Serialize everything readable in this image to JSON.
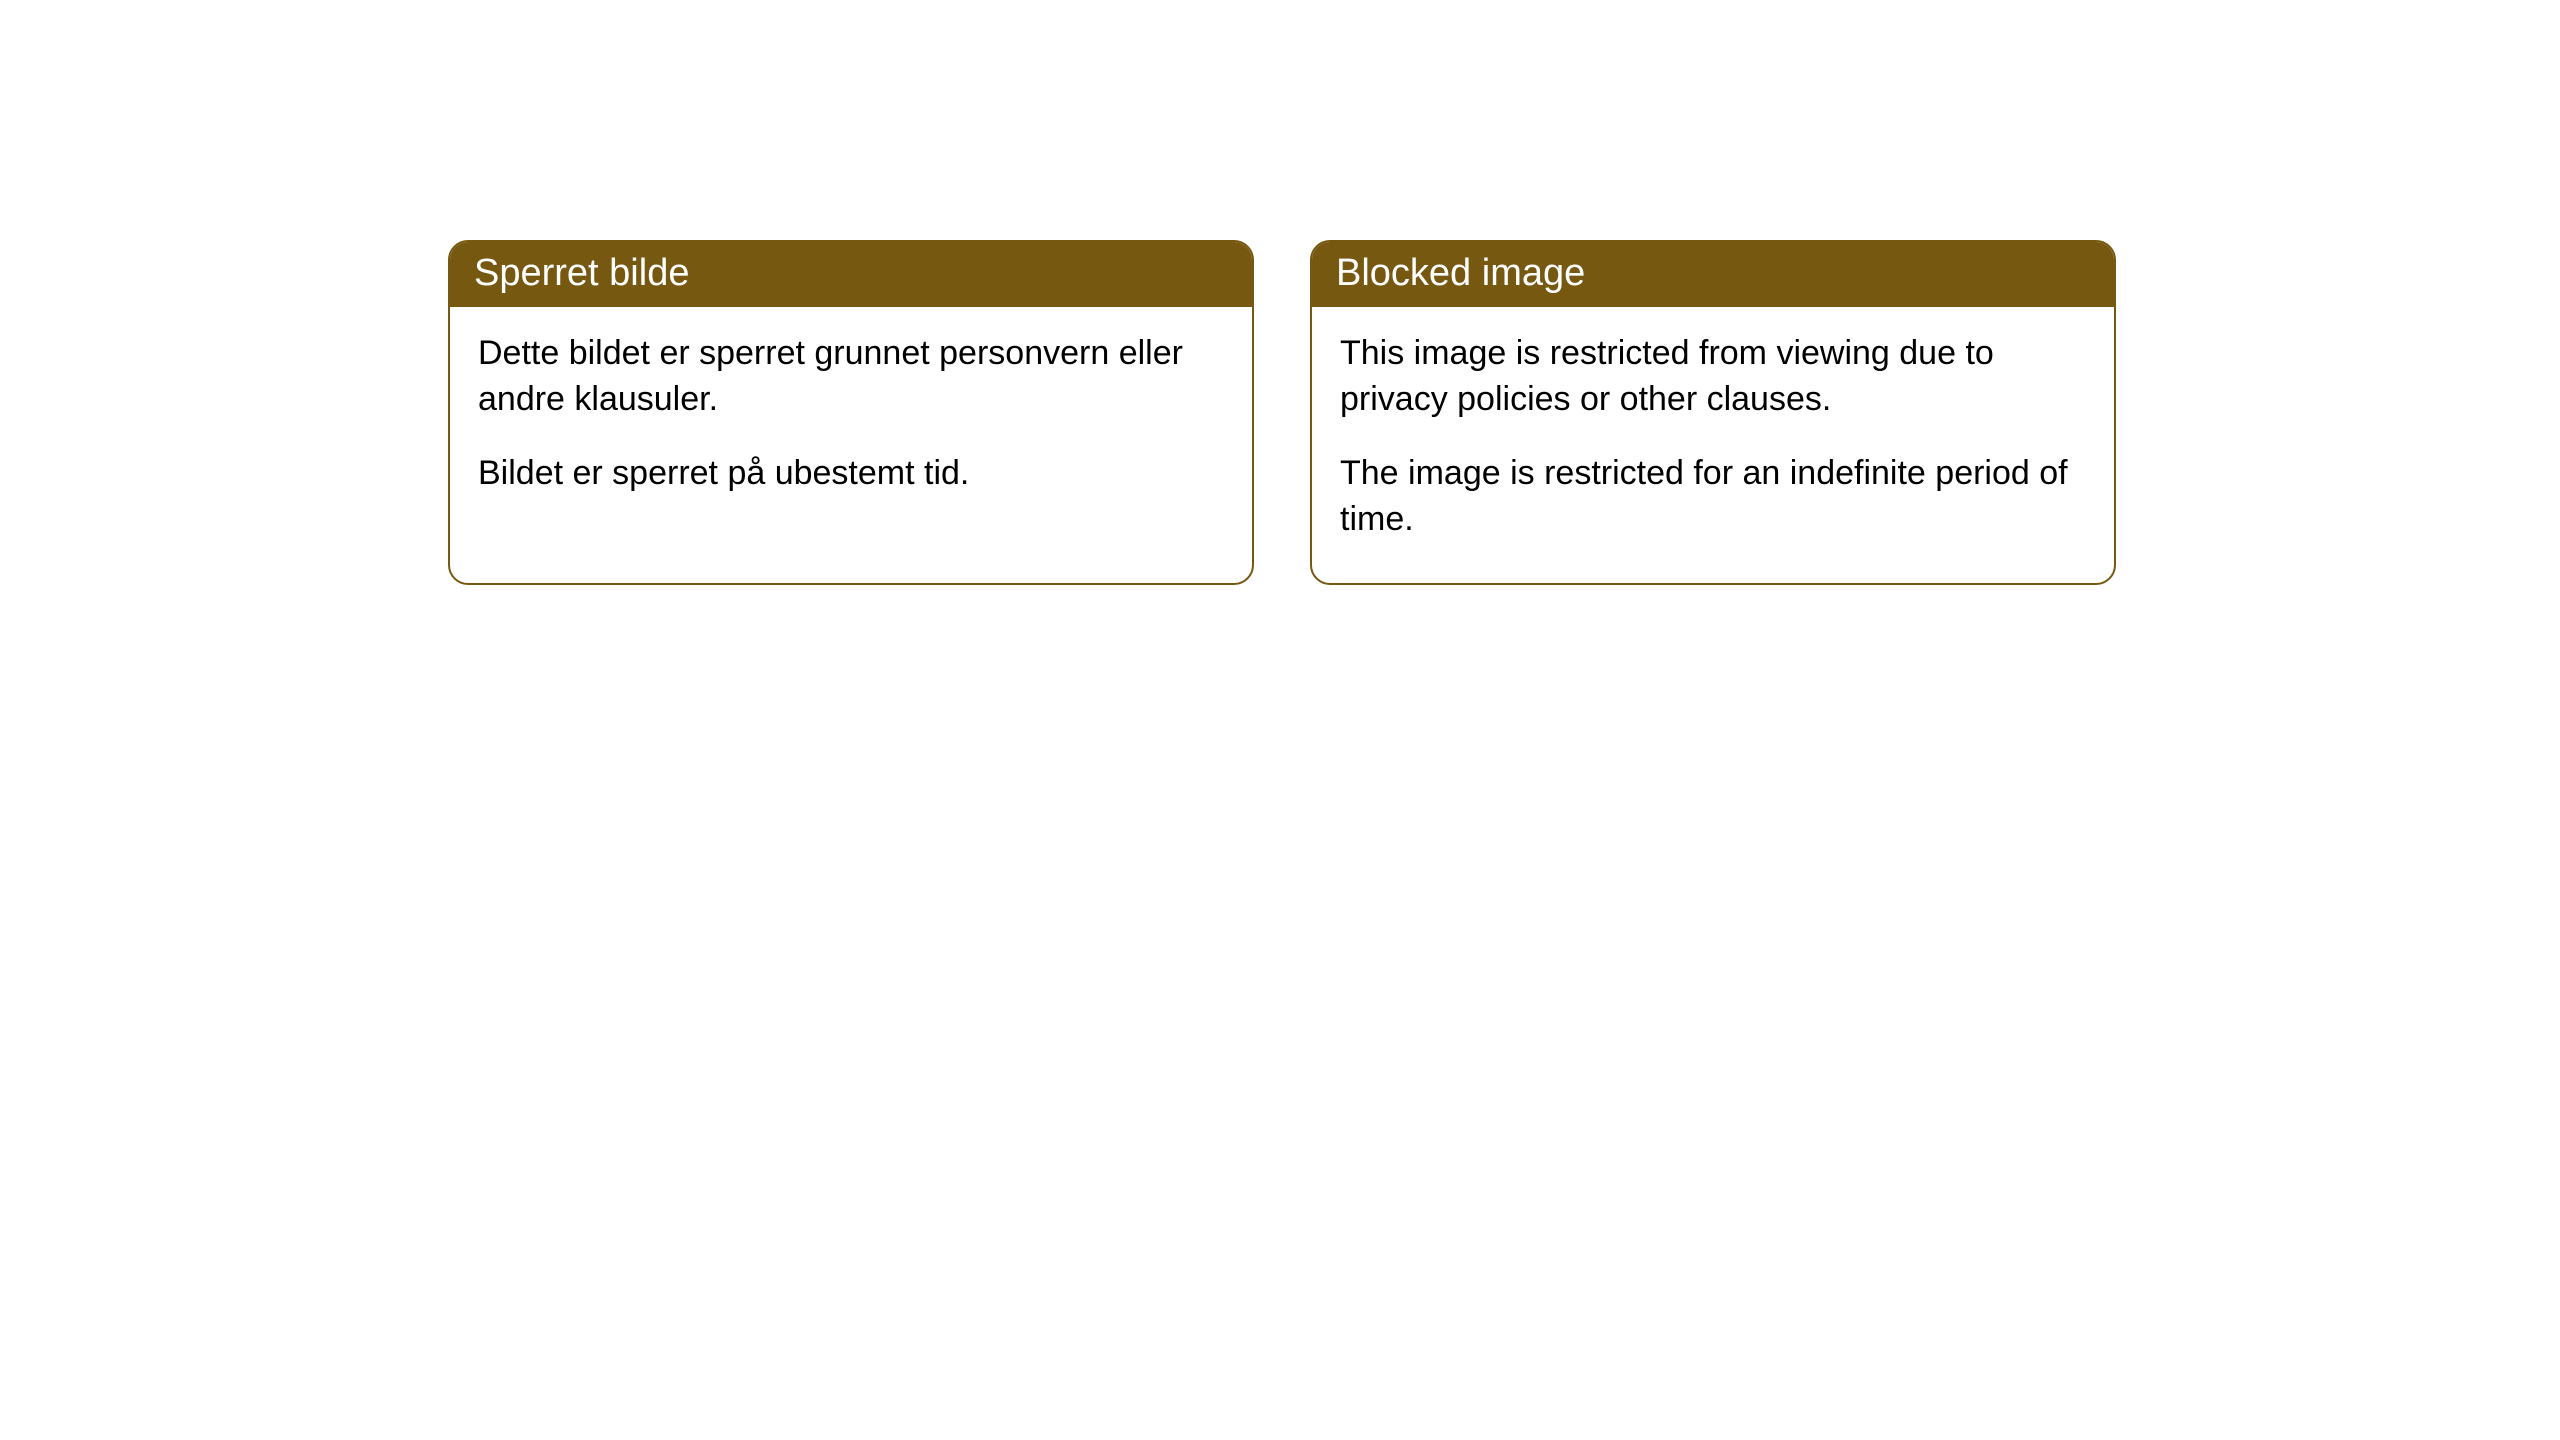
{
  "cards": [
    {
      "title": "Sperret bilde",
      "paragraph1": "Dette bildet er sperret grunnet personvern eller andre klausuler.",
      "paragraph2": "Bildet er sperret på ubestemt tid."
    },
    {
      "title": "Blocked image",
      "paragraph1": "This image is restricted from viewing due to privacy policies or other clauses.",
      "paragraph2": "The image is restricted for an indefinite period of time."
    }
  ],
  "styling": {
    "header_background": "#775811",
    "header_text_color": "#ffffff",
    "border_color": "#775811",
    "body_background": "#ffffff",
    "body_text_color": "#000000",
    "border_radius": 20,
    "header_fontsize": 38,
    "body_fontsize": 34
  }
}
